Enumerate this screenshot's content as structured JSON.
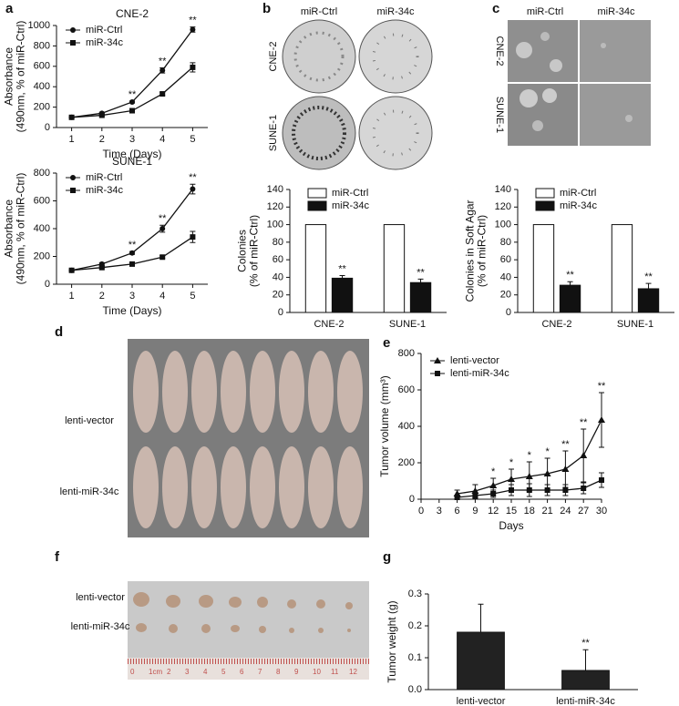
{
  "panel_labels": [
    "a",
    "b",
    "c",
    "d",
    "e",
    "f",
    "g"
  ],
  "images": {
    "b": {
      "columns": [
        "miR-Ctrl",
        "miR-34c"
      ],
      "rows": [
        "CNE-2",
        "SUNE-1"
      ]
    },
    "c": {
      "columns": [
        "miR-Ctrl",
        "miR-34c"
      ],
      "rows": [
        "CNE-2",
        "SUNE-1"
      ]
    },
    "d": {
      "rows": [
        "lenti-vector",
        "lenti-miR-34c"
      ]
    },
    "f": {
      "rows": [
        "lenti-vector",
        "lenti-miR-34c"
      ],
      "ruler": [
        "0",
        "1cm",
        "2",
        "3",
        "4",
        "5",
        "6",
        "7",
        "8",
        "9",
        "10",
        "11",
        "12"
      ]
    }
  },
  "chart_data": [
    {
      "type": "line",
      "title": "CNE-2",
      "ylabel": [
        "Absorbance",
        "(490nm, % of miR-Ctrl)"
      ],
      "xlabel": "Time (Days)",
      "x": [
        1,
        2,
        3,
        4,
        5
      ],
      "xlim": [
        0.5,
        5.5
      ],
      "xticks": [
        1,
        2,
        3,
        4,
        5
      ],
      "ylim": [
        0,
        1000
      ],
      "yticks": [
        0,
        200,
        400,
        600,
        800,
        1000
      ],
      "series": [
        {
          "name": "miR-Ctrl",
          "color": "#111111",
          "marker": "circle",
          "values": [
            100,
            140,
            250,
            560,
            960
          ],
          "errors": [
            5,
            10,
            10,
            25,
            25
          ]
        },
        {
          "name": "miR-34c",
          "color": "#111111",
          "marker": "square",
          "values": [
            100,
            120,
            165,
            330,
            590
          ],
          "errors": [
            5,
            8,
            10,
            15,
            45
          ]
        }
      ],
      "annotations": [
        {
          "x": 3,
          "label": "**"
        },
        {
          "x": 4,
          "label": "**"
        },
        {
          "x": 5,
          "label": "**"
        }
      ]
    },
    {
      "type": "line",
      "title": "SUNE-1",
      "ylabel": [
        "Absorbance",
        "(490nm, % of miR-Ctrl)"
      ],
      "xlabel": "Time (Days)",
      "x": [
        1,
        2,
        3,
        4,
        5
      ],
      "xlim": [
        0.5,
        5.5
      ],
      "xticks": [
        1,
        2,
        3,
        4,
        5
      ],
      "ylim": [
        0,
        800
      ],
      "yticks": [
        0,
        200,
        400,
        600,
        800
      ],
      "series": [
        {
          "name": "miR-Ctrl",
          "color": "#111111",
          "marker": "circle",
          "values": [
            100,
            145,
            225,
            400,
            685
          ],
          "errors": [
            5,
            10,
            10,
            25,
            35
          ]
        },
        {
          "name": "miR-34c",
          "color": "#111111",
          "marker": "square",
          "values": [
            100,
            120,
            145,
            195,
            340
          ],
          "errors": [
            5,
            8,
            8,
            10,
            40
          ]
        }
      ],
      "annotations": [
        {
          "x": 3,
          "label": "**"
        },
        {
          "x": 4,
          "label": "**"
        },
        {
          "x": 5,
          "label": "**"
        }
      ]
    },
    {
      "type": "bar",
      "ylabel": [
        "Colonies",
        "(% of miR-Ctrl)"
      ],
      "categories": [
        "CNE-2",
        "SUNE-1"
      ],
      "ylim": [
        0,
        140
      ],
      "yticks": [
        0,
        20,
        40,
        60,
        80,
        100,
        120,
        140
      ],
      "series": [
        {
          "name": "miR-Ctrl",
          "color": "#ffffff",
          "values": [
            100,
            100
          ]
        },
        {
          "name": "miR-34c",
          "color": "#111111",
          "values": [
            39,
            34
          ],
          "errors": [
            3,
            4
          ]
        }
      ],
      "annotations": [
        {
          "x": "CNE-2",
          "label": "**"
        },
        {
          "x": "SUNE-1",
          "label": "**"
        }
      ]
    },
    {
      "type": "bar",
      "ylabel": [
        "Colonies in Soft Agar",
        "(% of miR-Ctrl)"
      ],
      "categories": [
        "CNE-2",
        "SUNE-1"
      ],
      "ylim": [
        0,
        140
      ],
      "yticks": [
        0,
        20,
        40,
        60,
        80,
        100,
        120,
        140
      ],
      "series": [
        {
          "name": "miR-Ctrl",
          "color": "#ffffff",
          "values": [
            100,
            100
          ]
        },
        {
          "name": "miR-34c",
          "color": "#111111",
          "values": [
            31,
            27
          ],
          "errors": [
            4,
            6
          ]
        }
      ],
      "annotations": [
        {
          "x": "CNE-2",
          "label": "**"
        },
        {
          "x": "SUNE-1",
          "label": "**"
        }
      ]
    },
    {
      "type": "line",
      "ylabel": [
        "Tumor volume (mm³)"
      ],
      "xlabel": "Days",
      "x": [
        6,
        9,
        12,
        15,
        18,
        21,
        24,
        27,
        30
      ],
      "xlim": [
        0,
        30
      ],
      "xticks": [
        0,
        3,
        6,
        9,
        12,
        15,
        18,
        21,
        24,
        27,
        30
      ],
      "ylim": [
        0,
        800
      ],
      "yticks": [
        0,
        200,
        400,
        600,
        800
      ],
      "series": [
        {
          "name": "lenti-vector",
          "color": "#111111",
          "marker": "triangle",
          "values": [
            30,
            45,
            75,
            110,
            125,
            140,
            165,
            240,
            435
          ],
          "errors": [
            20,
            35,
            40,
            55,
            80,
            85,
            100,
            145,
            150
          ]
        },
        {
          "name": "lenti-miR-34c",
          "color": "#111111",
          "marker": "square",
          "values": [
            10,
            20,
            30,
            50,
            50,
            50,
            50,
            60,
            105
          ],
          "errors": [
            10,
            15,
            20,
            30,
            35,
            30,
            30,
            30,
            40
          ]
        }
      ],
      "annotations": [
        {
          "x": 12,
          "label": "*"
        },
        {
          "x": 15,
          "label": "*"
        },
        {
          "x": 18,
          "label": "*"
        },
        {
          "x": 21,
          "label": "*"
        },
        {
          "x": 24,
          "label": "**"
        },
        {
          "x": 27,
          "label": "**"
        },
        {
          "x": 30,
          "label": "**"
        }
      ]
    },
    {
      "type": "bar",
      "ylabel": [
        "Tumor weight (g)"
      ],
      "categories": [
        "lenti-vector",
        "lenti-miR-34c"
      ],
      "ylim": [
        0,
        0.3
      ],
      "yticks": [
        {
          "value": 0,
          "label": "0.0"
        },
        0.1,
        0.2,
        0.3
      ],
      "series": [
        {
          "color": "#222222",
          "values": [
            0.18,
            0.06
          ],
          "errors": [
            0.088,
            0.065
          ]
        }
      ],
      "annotations": [
        {
          "x": "lenti-miR-34c",
          "label": "**"
        }
      ]
    }
  ]
}
